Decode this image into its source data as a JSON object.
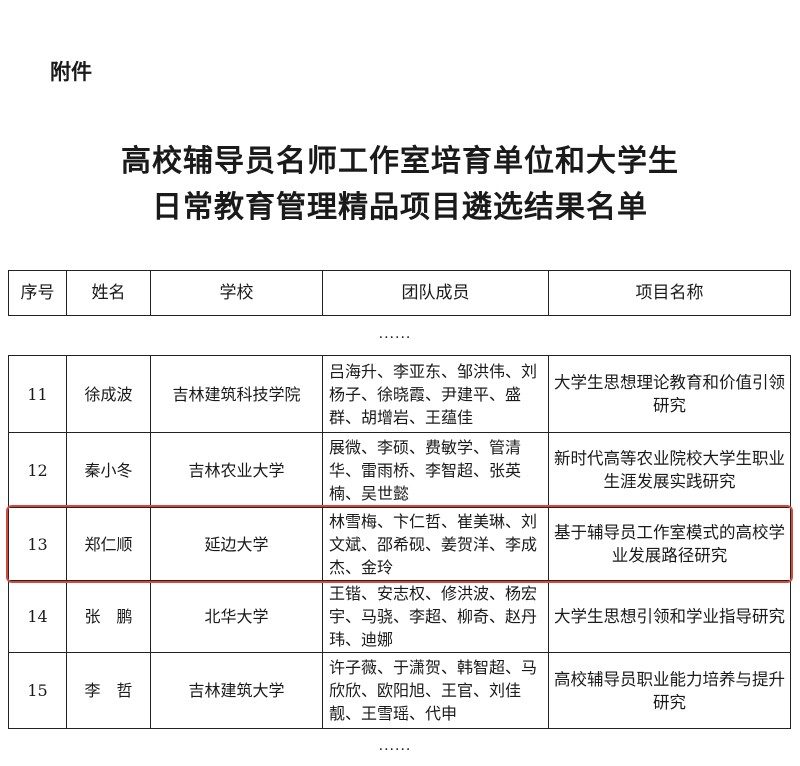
{
  "attachment_label": "附件",
  "title_line1": "高校辅导员名师工作室培育单位和大学生",
  "title_line2": "日常教育管理精品项目遴选结果名单",
  "columns": [
    "序号",
    "姓名",
    "学校",
    "团队成员",
    "项目名称"
  ],
  "ellipsis": "......",
  "rows": [
    {
      "no": "11",
      "name": "徐成波",
      "school": "吉林建筑科技学院",
      "members": "吕海升、李亚东、邹洪伟、刘杨子、徐晓霞、尹建平、盛群、胡增岩、王蕴佳",
      "project": "大学生思想理论教育和价值引领研究"
    },
    {
      "no": "12",
      "name": "秦小冬",
      "school": "吉林农业大学",
      "members": "展微、李硕、费敏学、管清华、雷雨桥、李智超、张英楠、吴世懿",
      "project": "新时代高等农业院校大学生职业生涯发展实践研究"
    },
    {
      "no": "13",
      "name": "郑仁顺",
      "school": "延边大学",
      "members": "林雪梅、卞仁哲、崔美琳、刘文斌、邵希砚、姜贺洋、李成杰、金玲",
      "project": "基于辅导员工作室模式的高校学业发展路径研究"
    },
    {
      "no": "14",
      "name": "张　鹏",
      "school": "北华大学",
      "members": "王锴、安志权、修洪波、杨宏宇、马骁、李超、柳奇、赵丹玮、迪娜",
      "project": "大学生思想引领和学业指导研究"
    },
    {
      "no": "15",
      "name": "李　哲",
      "school": "吉林建筑大学",
      "members": "许子薇、于潇贺、韩智超、马欣欣、欧阳旭、王官、刘佳靓、王雪瑶、代申",
      "project": "高校辅导员职业能力培养与提升研究"
    }
  ],
  "highlight_color": "#d9463a",
  "highlighted_row": "13"
}
